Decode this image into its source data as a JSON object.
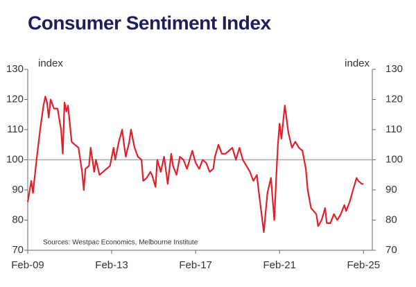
{
  "chart_data": {
    "type": "line",
    "title": "Consumer Sentiment Index",
    "y_label": "index",
    "y2_label": "index",
    "note": "Sources: Westpac Economics, Melbourne Institute",
    "x": [
      2009.08,
      2009.25,
      2009.33,
      2009.5,
      2009.67,
      2009.83,
      2009.92,
      2010.0,
      2010.08,
      2010.17,
      2010.33,
      2010.5,
      2010.67,
      2010.75,
      2010.83,
      2010.92,
      2011.0,
      2011.17,
      2011.33,
      2011.5,
      2011.67,
      2011.75,
      2011.83,
      2012.0,
      2012.08,
      2012.25,
      2012.33,
      2012.5,
      2012.67,
      2012.83,
      2013.0,
      2013.17,
      2013.25,
      2013.42,
      2013.58,
      2013.67,
      2013.75,
      2013.92,
      2014.0,
      2014.17,
      2014.33,
      2014.5,
      2014.58,
      2014.75,
      2014.92,
      2015.0,
      2015.17,
      2015.25,
      2015.42,
      2015.58,
      2015.75,
      2015.92,
      2016.0,
      2016.17,
      2016.33,
      2016.5,
      2016.67,
      2016.92,
      2017.08,
      2017.25,
      2017.42,
      2017.58,
      2017.75,
      2017.92,
      2018.0,
      2018.17,
      2018.33,
      2018.5,
      2018.67,
      2018.83,
      2019.0,
      2019.17,
      2019.33,
      2019.5,
      2019.67,
      2019.83,
      2020.0,
      2020.08,
      2020.33,
      2020.5,
      2020.67,
      2020.83,
      2020.92,
      2021.0,
      2021.08,
      2021.17,
      2021.33,
      2021.5,
      2021.67,
      2021.83,
      2022.0,
      2022.17,
      2022.33,
      2022.42,
      2022.58,
      2022.83,
      2022.92,
      2023.08,
      2023.25,
      2023.33,
      2023.5,
      2023.67,
      2023.83,
      2024.0,
      2024.17,
      2024.25,
      2024.42,
      2024.58,
      2024.75,
      2024.83,
      2025.0,
      2025.08
    ],
    "series": [
      {
        "name": "Consumer Sentiment Index",
        "color": "#e0202a",
        "values": [
          86,
          93,
          89,
          100,
          110,
          118,
          121,
          119,
          114,
          120,
          117,
          117,
          110,
          102,
          119,
          116,
          118,
          106,
          105,
          104,
          96,
          90,
          97,
          98,
          104,
          96,
          100,
          95,
          96,
          97,
          98,
          104,
          100,
          106,
          110,
          105,
          101,
          106,
          110,
          104,
          101,
          100,
          93,
          94,
          96,
          95,
          91,
          100,
          96,
          101,
          92,
          102,
          98,
          95,
          101,
          100,
          97,
          103,
          99,
          97,
          100,
          99,
          96,
          97,
          101,
          105,
          102,
          102,
          103,
          104,
          100,
          104,
          100,
          98,
          96,
          93,
          95,
          90,
          76,
          89,
          94,
          80,
          94,
          105,
          112,
          107,
          118,
          109,
          104,
          106,
          104,
          103,
          97,
          90,
          84,
          82,
          78,
          80,
          84,
          79,
          79,
          82,
          80,
          82,
          85,
          83,
          86,
          90,
          94,
          93,
          92,
          92
        ]
      }
    ],
    "xlim": [
      2009.08,
      2025.5
    ],
    "xticks": [
      {
        "value": 2009.08,
        "label": "Feb-09"
      },
      {
        "value": 2013.08,
        "label": "Feb-13"
      },
      {
        "value": 2017.08,
        "label": "Feb-17"
      },
      {
        "value": 2021.08,
        "label": "Feb-21"
      },
      {
        "value": 2025.08,
        "label": "Feb-25"
      }
    ],
    "ylim": [
      70,
      130
    ],
    "yticks": [
      70,
      80,
      90,
      100,
      110,
      120,
      130
    ],
    "y2lim": [
      70,
      130
    ],
    "y2ticks": [
      70,
      80,
      90,
      100,
      110,
      120,
      130
    ],
    "reference_line": 100
  }
}
